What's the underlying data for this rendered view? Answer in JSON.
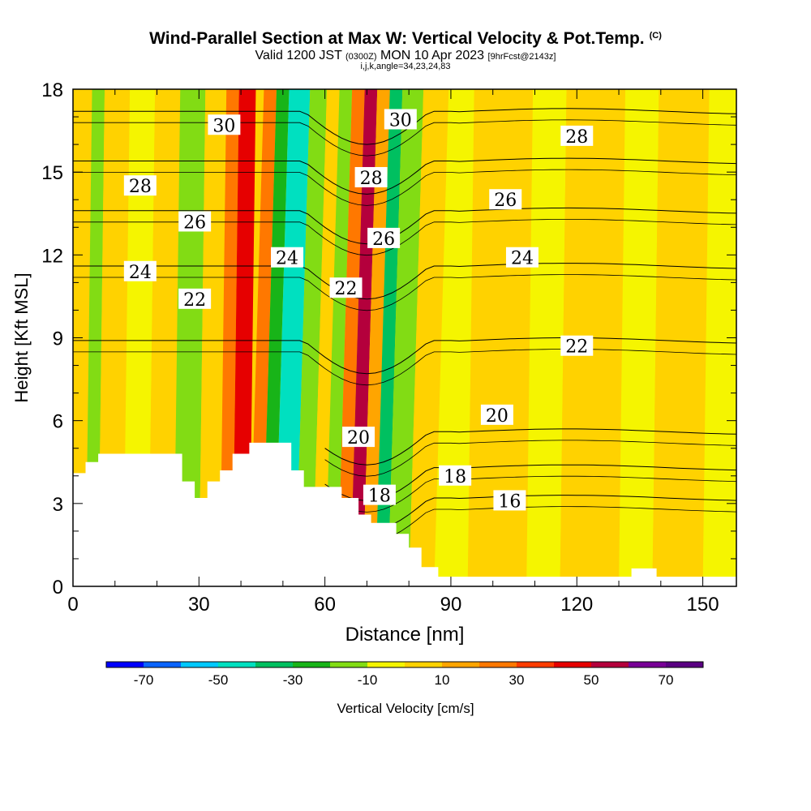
{
  "header": {
    "title": "Wind-Parallel Section at Max W: Vertical Velocity & Pot.Temp.",
    "copyright": "(C)",
    "valid_prefix": "Valid 1200 JST",
    "valid_utc": "(0300Z)",
    "valid_date": "MON 10 Apr 2023",
    "forecast": "[9hrFcst@2143z]",
    "indices": "i,j,k,angle=34,23,24,83"
  },
  "chart_data": {
    "type": "heatmap",
    "xlabel": "Distance [nm]",
    "ylabel": "Height [Kft MSL]",
    "xlim": [
      0,
      158
    ],
    "ylim": [
      0,
      18
    ],
    "x_ticks": [
      0,
      30,
      60,
      90,
      120,
      150
    ],
    "y_ticks": [
      0,
      3,
      6,
      9,
      12,
      15,
      18
    ],
    "colorbar": {
      "label": "Vertical Velocity [cm/s]",
      "tick_labels": [
        -70,
        -50,
        -30,
        -10,
        10,
        30,
        50,
        70
      ],
      "boundaries": [
        -80,
        -70,
        -60,
        -50,
        -40,
        -30,
        -20,
        -10,
        0,
        10,
        20,
        30,
        40,
        50,
        60,
        70,
        80
      ],
      "colors": [
        "#0000ff",
        "#0a64ff",
        "#00c8ff",
        "#00e0c0",
        "#00c060",
        "#18b418",
        "#82dc14",
        "#f5f500",
        "#ffd200",
        "#ffa500",
        "#ff7800",
        "#ff3c00",
        "#e60000",
        "#b4003c",
        "#780096",
        "#5a0082"
      ]
    },
    "vertical_velocity_bands": [
      {
        "x0": 0,
        "x1": 3,
        "value": 5
      },
      {
        "x0": 3,
        "x1": 6,
        "value": -15
      },
      {
        "x0": 6,
        "x1": 12,
        "value": 5
      },
      {
        "x0": 12,
        "x1": 18,
        "value": -5
      },
      {
        "x0": 18,
        "x1": 24,
        "value": 5
      },
      {
        "x0": 24,
        "x1": 30,
        "value": -12
      },
      {
        "x0": 30,
        "x1": 35,
        "value": 8
      },
      {
        "x0": 35,
        "x1": 38,
        "value": 25
      },
      {
        "x0": 38,
        "x1": 42,
        "value": 45
      },
      {
        "x0": 42,
        "x1": 45,
        "value": 20
      },
      {
        "x0": 45,
        "x1": 48,
        "value": -25
      },
      {
        "x0": 48,
        "x1": 53,
        "value": -45
      },
      {
        "x0": 53,
        "x1": 57,
        "value": -15
      },
      {
        "x0": 57,
        "x1": 60,
        "value": 5
      },
      {
        "x0": 60,
        "x1": 63,
        "value": -12
      },
      {
        "x0": 63,
        "x1": 66,
        "value": 25
      },
      {
        "x0": 66,
        "x1": 69,
        "value": 55
      },
      {
        "x0": 69,
        "x1": 72,
        "value": 15
      },
      {
        "x0": 72,
        "x1": 75,
        "value": -35
      },
      {
        "x0": 75,
        "x1": 80,
        "value": -15
      },
      {
        "x0": 80,
        "x1": 86,
        "value": 5
      },
      {
        "x0": 86,
        "x1": 94,
        "value": -5
      },
      {
        "x0": 94,
        "x1": 100,
        "value": 5
      },
      {
        "x0": 100,
        "x1": 108,
        "value": 8
      },
      {
        "x0": 108,
        "x1": 116,
        "value": -5
      },
      {
        "x0": 116,
        "x1": 130,
        "value": 5
      },
      {
        "x0": 130,
        "x1": 138,
        "value": -5
      },
      {
        "x0": 138,
        "x1": 150,
        "value": 5
      },
      {
        "x0": 150,
        "x1": 158,
        "value": -5
      }
    ],
    "potential_temperature_contours": {
      "levels": [
        16,
        18,
        20,
        22,
        24,
        26,
        28,
        30
      ],
      "labels": [
        {
          "text": "30",
          "x": 36,
          "y": 16.7
        },
        {
          "text": "30",
          "x": 78,
          "y": 16.9
        },
        {
          "text": "28",
          "x": 120,
          "y": 16.3
        },
        {
          "text": "28",
          "x": 16,
          "y": 14.5
        },
        {
          "text": "28",
          "x": 71,
          "y": 14.8
        },
        {
          "text": "26",
          "x": 29,
          "y": 13.2
        },
        {
          "text": "26",
          "x": 74,
          "y": 12.6
        },
        {
          "text": "26",
          "x": 103,
          "y": 14.0
        },
        {
          "text": "24",
          "x": 16,
          "y": 11.4
        },
        {
          "text": "24",
          "x": 51,
          "y": 11.9
        },
        {
          "text": "24",
          "x": 107,
          "y": 11.9
        },
        {
          "text": "22",
          "x": 29,
          "y": 10.4
        },
        {
          "text": "22",
          "x": 65,
          "y": 10.8
        },
        {
          "text": "22",
          "x": 120,
          "y": 8.7
        },
        {
          "text": "20",
          "x": 68,
          "y": 5.4
        },
        {
          "text": "20",
          "x": 101,
          "y": 6.2
        },
        {
          "text": "18",
          "x": 73,
          "y": 3.3
        },
        {
          "text": "18",
          "x": 91,
          "y": 4.0
        },
        {
          "text": "16",
          "x": 104,
          "y": 3.1
        }
      ]
    },
    "terrain": [
      [
        0,
        4.1
      ],
      [
        3,
        4.1
      ],
      [
        3,
        4.5
      ],
      [
        6,
        4.5
      ],
      [
        6,
        4.8
      ],
      [
        26,
        4.8
      ],
      [
        26,
        3.8
      ],
      [
        29,
        3.8
      ],
      [
        29,
        3.2
      ],
      [
        32,
        3.2
      ],
      [
        32,
        3.8
      ],
      [
        35,
        3.8
      ],
      [
        35,
        4.2
      ],
      [
        38,
        4.2
      ],
      [
        38,
        4.8
      ],
      [
        42,
        4.8
      ],
      [
        42,
        5.2
      ],
      [
        52,
        5.2
      ],
      [
        52,
        4.2
      ],
      [
        55,
        4.2
      ],
      [
        55,
        3.6
      ],
      [
        64,
        3.6
      ],
      [
        64,
        3.2
      ],
      [
        68,
        3.2
      ],
      [
        68,
        2.6
      ],
      [
        71,
        2.6
      ],
      [
        71,
        2.3
      ],
      [
        77,
        2.3
      ],
      [
        77,
        1.9
      ],
      [
        80,
        1.9
      ],
      [
        80,
        1.4
      ],
      [
        83,
        1.4
      ],
      [
        83,
        0.7
      ],
      [
        87,
        0.7
      ],
      [
        87,
        0.35
      ],
      [
        133,
        0.35
      ],
      [
        133,
        0.65
      ],
      [
        139,
        0.65
      ],
      [
        139,
        0.35
      ],
      [
        158,
        0.35
      ]
    ]
  }
}
